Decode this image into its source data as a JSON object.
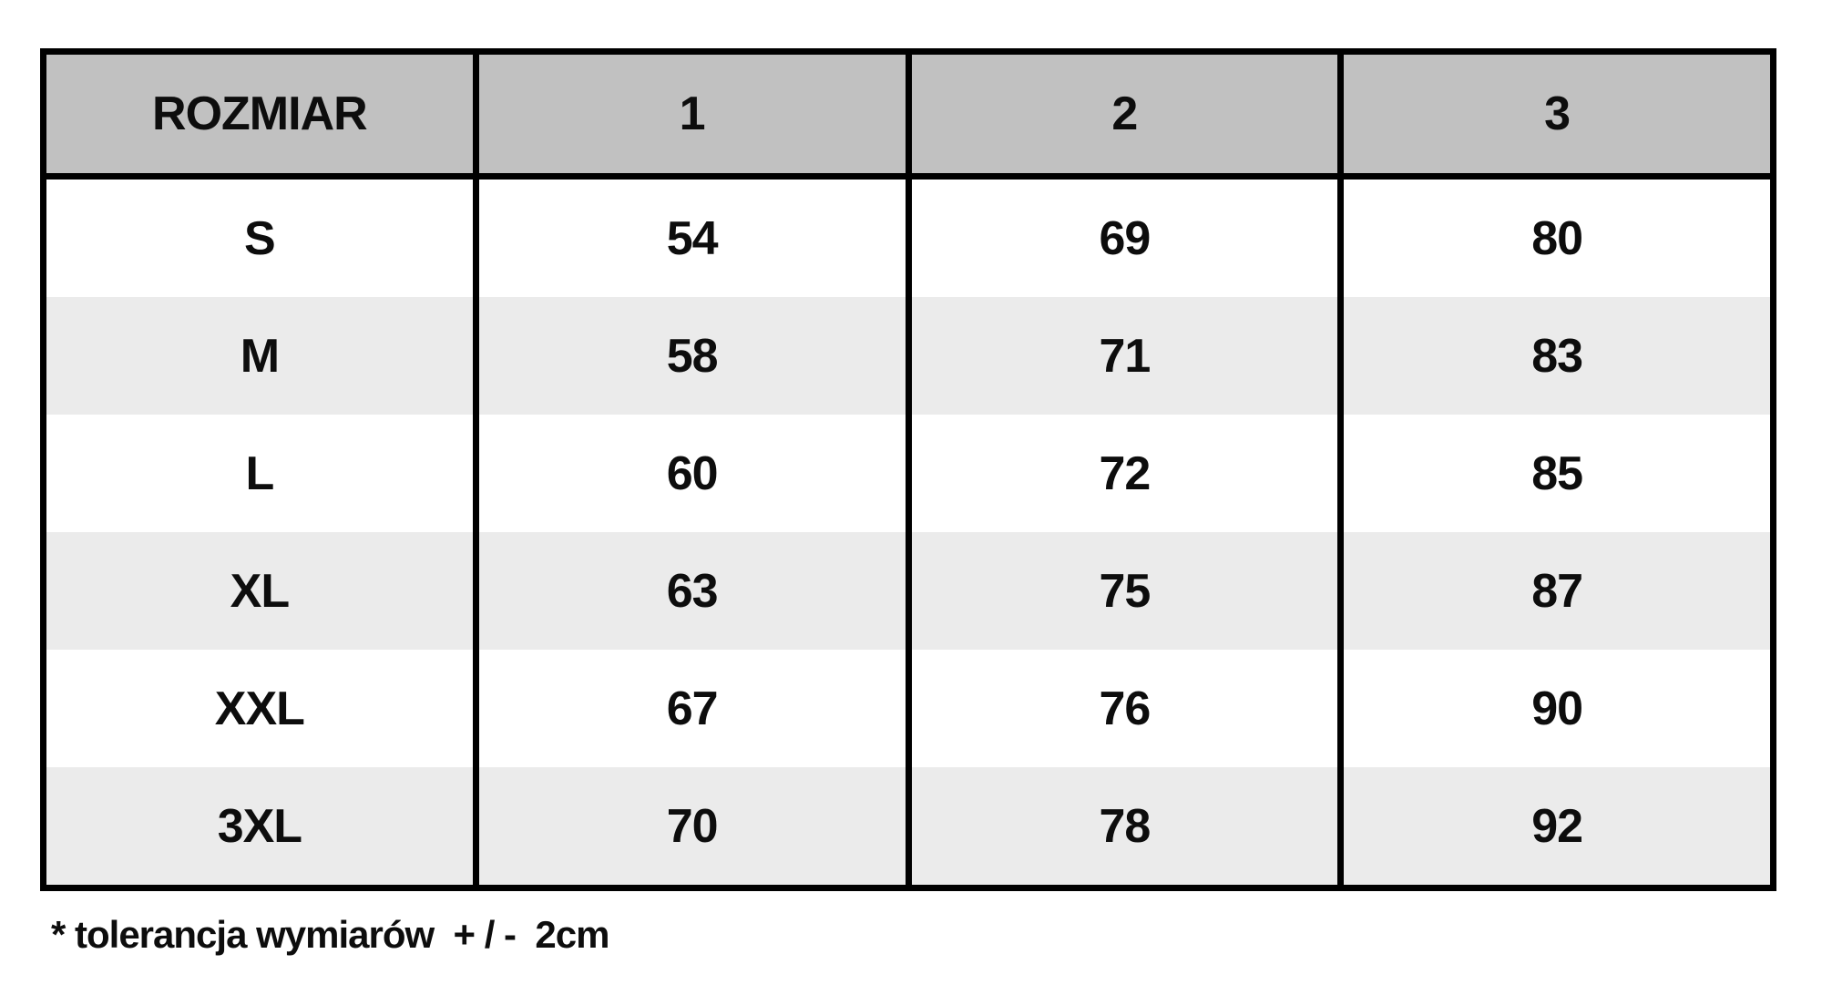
{
  "chart_data": {
    "type": "table",
    "title": "",
    "columns": [
      "ROZMIAR",
      "1",
      "2",
      "3"
    ],
    "rows": [
      [
        "S",
        54,
        69,
        80
      ],
      [
        "M",
        58,
        71,
        83
      ],
      [
        "L",
        60,
        72,
        85
      ],
      [
        "XL",
        63,
        75,
        87
      ],
      [
        "XXL",
        67,
        76,
        90
      ],
      [
        "3XL",
        70,
        78,
        92
      ]
    ],
    "footnote": "* tolerancja wymiarów  + / -  2cm",
    "layout_hints": {
      "header_fill": "gray",
      "row_striping": "white / light-gray alternating",
      "inner_horizontal_borders": false,
      "inner_vertical_borders": true,
      "outer_border": "thick black"
    }
  },
  "table": {
    "headers": [
      "ROZMIAR",
      "1",
      "2",
      "3"
    ],
    "rows": [
      [
        "S",
        "54",
        "69",
        "80"
      ],
      [
        "M",
        "58",
        "71",
        "83"
      ],
      [
        "L",
        "60",
        "72",
        "85"
      ],
      [
        "XL",
        "63",
        "75",
        "87"
      ],
      [
        "XXL",
        "67",
        "76",
        "90"
      ],
      [
        "3XL",
        "70",
        "78",
        "92"
      ]
    ]
  },
  "footnote": "* tolerancja wymiarów  + / -  2cm",
  "colors": {
    "header_bg": "#c1c1c1",
    "row_white_bg": "#ffffff",
    "row_alt_bg": "#ebebeb",
    "border": "#000000",
    "text": "#0d0d0d",
    "page_bg": "#ffffff"
  }
}
